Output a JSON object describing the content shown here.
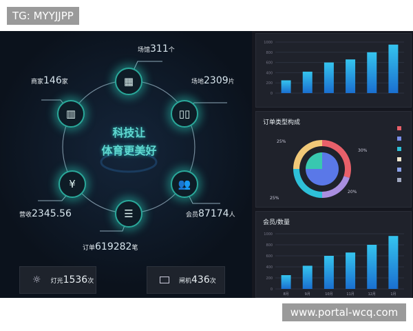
{
  "watermarks": {
    "top": "TG: MYYJJPP",
    "bottom": "www.portal-wcq.com"
  },
  "hub": {
    "line1": "科技让",
    "line2": "体育更美好",
    "nodes": [
      {
        "icon": "building-icon",
        "label": "场馆",
        "value": "311",
        "unit": "个"
      },
      {
        "icon": "store-icon",
        "label": "商家",
        "value": "146",
        "unit": "家"
      },
      {
        "icon": "book-icon",
        "label": "场地",
        "value": "2309",
        "unit": "片"
      },
      {
        "icon": "yen-icon",
        "label": "营收",
        "value": "2345.56",
        "unit": ""
      },
      {
        "icon": "document-icon",
        "label": "订单",
        "value": "619282",
        "unit": "笔"
      },
      {
        "icon": "users-icon",
        "label": "会员",
        "value": "87174",
        "unit": "人"
      }
    ]
  },
  "stats": [
    {
      "icon": "lightbulb-icon",
      "label": "灯光",
      "value": "1536",
      "unit": "次"
    },
    {
      "icon": "card-icon",
      "label": "闸机",
      "value": "436",
      "unit": "次"
    }
  ],
  "chart_data": [
    {
      "type": "bar",
      "title": "",
      "yticks": [
        "0",
        "200",
        "400",
        "600",
        "800",
        "1000"
      ],
      "ylim": [
        0,
        1000
      ],
      "categories": [
        "",
        "",
        "",
        "",
        "",
        ""
      ],
      "values": [
        250,
        420,
        600,
        660,
        800,
        950
      ],
      "color": "#2a9fe0"
    },
    {
      "type": "pie",
      "title": "订单类型构成",
      "labels": [
        "30%",
        "20%",
        "25%",
        "25%"
      ],
      "outer": [
        {
          "value": 30,
          "color": "#e8606a"
        },
        {
          "value": 20,
          "color": "#a98ee0"
        },
        {
          "value": 25,
          "color": "#2ec0d8"
        },
        {
          "value": 25,
          "color": "#f0c878"
        }
      ],
      "inner": [
        {
          "value": 25,
          "color": "#38c8b0"
        },
        {
          "value": 75,
          "color": "#5a78e8"
        }
      ],
      "legend": [
        {
          "name": "",
          "color": "#e8606a"
        },
        {
          "name": "",
          "color": "#7a8ee8"
        },
        {
          "name": "",
          "color": "#2ec0d8"
        },
        {
          "name": "",
          "color": "#f0e8d0"
        },
        {
          "name": "",
          "color": "#8aa0e8"
        },
        {
          "name": "",
          "color": "#a0a8c0"
        }
      ]
    },
    {
      "type": "bar",
      "title": "会员/数量",
      "yticks": [
        "0",
        "200",
        "400",
        "600",
        "800",
        "1000"
      ],
      "ylim": [
        0,
        1000
      ],
      "categories": [
        "8月",
        "9月",
        "10月",
        "11月",
        "12月",
        "1月"
      ],
      "values": [
        250,
        420,
        600,
        660,
        800,
        960
      ],
      "color": "#2a9fe0"
    }
  ]
}
